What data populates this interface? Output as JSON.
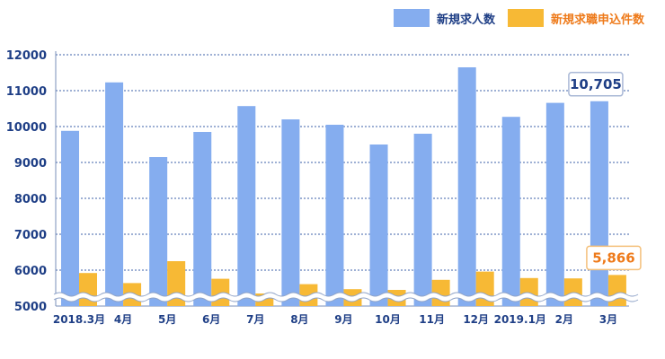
{
  "legend": {
    "job_openings_label": "新規求人数",
    "job_seekers_label": "新規求職申込件数"
  },
  "colors": {
    "job_openings": "#85ADEF",
    "job_seekers": "#F7B935",
    "axis_text": "#1F3F86",
    "highlight_blue_text": "#1F3F86",
    "highlight_orange_text": "#EE7A1A",
    "grid": "#3E62A8"
  },
  "callouts": {
    "last_openings": "10,705",
    "last_seekers": "5,866"
  },
  "chart_data": {
    "type": "bar",
    "categories": [
      "2018.3月",
      "4月",
      "5月",
      "6月",
      "7月",
      "8月",
      "9月",
      "10月",
      "11月",
      "12月",
      "2019.1月",
      "2月",
      "3月"
    ],
    "series": [
      {
        "name": "新規求人数",
        "values": [
          9880,
          11230,
          9150,
          9850,
          10570,
          10200,
          10050,
          9500,
          9800,
          11650,
          10270,
          10660,
          10705
        ]
      },
      {
        "name": "新規求職申込件数",
        "values": [
          5920,
          5640,
          6250,
          5760,
          5350,
          5610,
          5470,
          5450,
          5730,
          5960,
          5780,
          5770,
          5866
        ]
      }
    ],
    "ylim": [
      5000,
      12000
    ],
    "yticks": [
      5000,
      6000,
      7000,
      8000,
      9000,
      10000,
      11000,
      12000
    ],
    "axis_break": true,
    "grid": true,
    "legend_position": "top-right"
  }
}
